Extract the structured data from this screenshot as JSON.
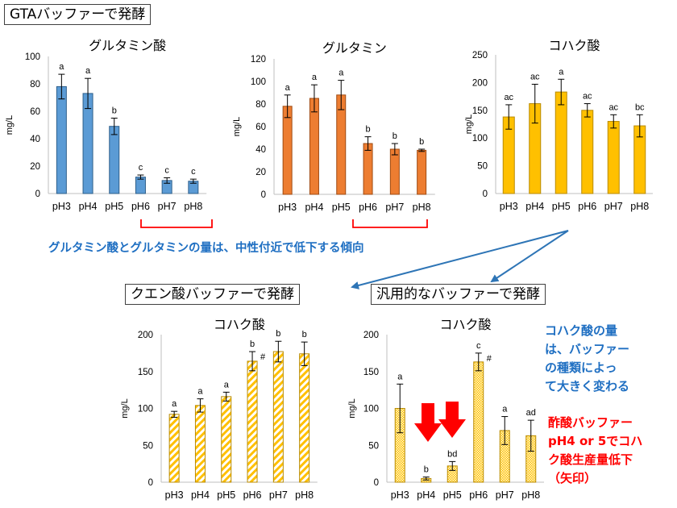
{
  "header": {
    "title": "GTAバッファーで発酵"
  },
  "buffer_titles": {
    "citric": "クエン酸バッファーで発酵",
    "generic": "汎用的なバッファーで発酵"
  },
  "note_neutral": "グルタミン酸とグルタミンの量は、中性付近で低下する傾向",
  "note_succinic": [
    "コハク酸の量",
    "は、バッファー",
    "の種類によっ",
    "て大きく変わる"
  ],
  "note_acetic": [
    "酢酸バッファー",
    "pH4 or 5でコハ",
    "ク酸生産量低下",
    "（矢印）"
  ],
  "colors": {
    "blue": "#5b9bd5",
    "blue_edge": "#2e5f8a",
    "orange": "#ed7d31",
    "orange_edge": "#9e4a12",
    "yellow": "#ffc000",
    "yellow_edge": "#b88a00",
    "note_blue": "#1f6fc2",
    "red": "#ff0000",
    "axis": "#bfbfbf",
    "arrow_blue": "#2e75b6"
  },
  "chart_data": [
    {
      "id": "c1",
      "type": "bar",
      "title": "グルタミン酸",
      "ylabel": "mg/L",
      "ylim": [
        0,
        100
      ],
      "yticks": [
        0,
        20,
        40,
        60,
        80,
        100
      ],
      "categories": [
        "pH3",
        "pH4",
        "pH5",
        "pH6",
        "pH7",
        "pH8"
      ],
      "values": [
        78,
        73,
        49,
        12,
        9.5,
        9
      ],
      "errors": [
        9,
        11,
        6,
        1.5,
        2,
        1.5
      ],
      "labels": [
        "a",
        "a",
        "b",
        "c",
        "c",
        "c"
      ],
      "pattern": "solid",
      "color": "blue"
    },
    {
      "id": "c2",
      "type": "bar",
      "title": "グルタミン",
      "ylabel": "mg/L",
      "ylim": [
        0,
        120
      ],
      "yticks": [
        0,
        20,
        40,
        60,
        80,
        100,
        120
      ],
      "categories": [
        "pH3",
        "pH4",
        "pH5",
        "pH6",
        "pH7",
        "pH8"
      ],
      "values": [
        78,
        85,
        88,
        45,
        40,
        39
      ],
      "errors": [
        10,
        12,
        13,
        6,
        5,
        1
      ],
      "labels": [
        "a",
        "a",
        "a",
        "b",
        "b",
        "b"
      ],
      "pattern": "solid",
      "color": "orange"
    },
    {
      "id": "c3",
      "type": "bar",
      "title": "コハク酸",
      "ylabel": "mg/L",
      "ylim": [
        0,
        250
      ],
      "yticks": [
        0,
        50,
        100,
        150,
        200,
        250
      ],
      "categories": [
        "pH3",
        "pH4",
        "pH5",
        "pH6",
        "pH7",
        "pH8"
      ],
      "values": [
        138,
        162,
        183,
        150,
        130,
        122
      ],
      "errors": [
        22,
        35,
        23,
        12,
        12,
        20
      ],
      "labels": [
        "ac",
        "ac",
        "a",
        "ac",
        "ac",
        "bc"
      ],
      "pattern": "solid",
      "color": "yellow"
    },
    {
      "id": "c4",
      "type": "bar",
      "title": "コハク酸",
      "ylabel": "mg/L",
      "ylim": [
        0,
        200
      ],
      "yticks": [
        0,
        50,
        100,
        150,
        200
      ],
      "categories": [
        "pH3",
        "pH4",
        "pH5",
        "pH6",
        "pH7",
        "pH8"
      ],
      "values": [
        92,
        104,
        116,
        164,
        177,
        174
      ],
      "errors": [
        4,
        9,
        6,
        13,
        14,
        16
      ],
      "labels": [
        "a",
        "a",
        "a",
        "b",
        "b",
        "b"
      ],
      "marks": [
        "",
        "",
        "",
        "#",
        "",
        ""
      ],
      "pattern": "stripes",
      "color": "yellow"
    },
    {
      "id": "c5",
      "type": "bar",
      "title": "コハク酸",
      "ylabel": "mg/L",
      "ylim": [
        0,
        200
      ],
      "yticks": [
        0,
        50,
        100,
        150,
        200
      ],
      "categories": [
        "pH3",
        "pH4",
        "pH5",
        "pH6",
        "pH7",
        "pH8"
      ],
      "values": [
        100,
        5,
        22,
        163,
        70,
        63
      ],
      "errors": [
        33,
        2,
        6,
        12,
        19,
        21
      ],
      "labels": [
        "a",
        "b",
        "bd",
        "c",
        "a",
        "ad"
      ],
      "marks": [
        "",
        "",
        "",
        "#",
        "",
        ""
      ],
      "pattern": "dots",
      "color": "yellow"
    }
  ]
}
